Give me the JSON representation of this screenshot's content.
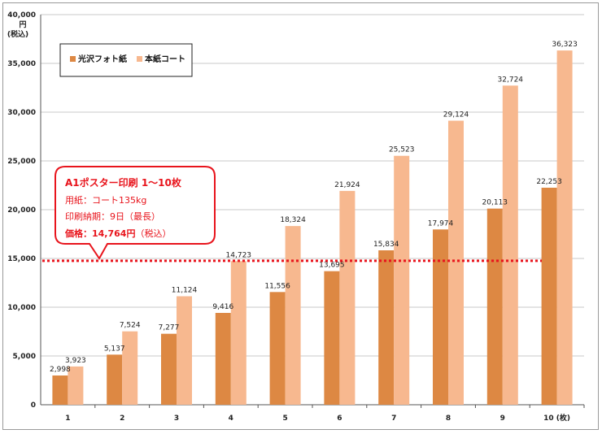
{
  "chart_data": {
    "type": "bar",
    "categories": [
      "1",
      "2",
      "3",
      "4",
      "5",
      "6",
      "7",
      "8",
      "9",
      "10 (枚)"
    ],
    "series": [
      {
        "name": "光沢フォト紙",
        "color": "#dd8843",
        "values": [
          2998,
          5137,
          7277,
          9416,
          11556,
          13695,
          15834,
          17974,
          20113,
          22253
        ],
        "labels": [
          "2,998",
          "5,137",
          "7,277",
          "9,416",
          "11,556",
          "13,695",
          "15,834",
          "17,974",
          "20,113",
          "22,253"
        ]
      },
      {
        "name": "本紙コート",
        "color": "#f7b88f",
        "values": [
          3923,
          7524,
          11124,
          14723,
          18324,
          21924,
          25523,
          29124,
          32724,
          36323
        ],
        "labels": [
          "3,923",
          "7,524",
          "11,124",
          "14,723",
          "18,324",
          "21,924",
          "25,523",
          "29,124",
          "32,724",
          "36,323"
        ]
      }
    ],
    "ylim": [
      0,
      40000
    ],
    "yticks": [
      0,
      5000,
      10000,
      15000,
      20000,
      25000,
      30000,
      35000,
      40000
    ],
    "ytick_labels": [
      "0",
      "5,000",
      "10,000",
      "15,000",
      "20,000",
      "25,000",
      "30,000",
      "35,000",
      "40,000"
    ],
    "y_unit": [
      "円",
      "(税込)"
    ],
    "grid": true,
    "legend_position": "top-left",
    "reference_line": {
      "value": 14764,
      "color": "#e8141c"
    },
    "annotation": {
      "title": "A1ポスター印刷 1～10枚",
      "line2": "用紙：コート135kg",
      "line3": "印刷納期：9日（最長）",
      "line4_label": "価格：",
      "line4_value": "14,764円",
      "line4_suffix": "（税込）",
      "border_color": "#e8141c"
    }
  }
}
